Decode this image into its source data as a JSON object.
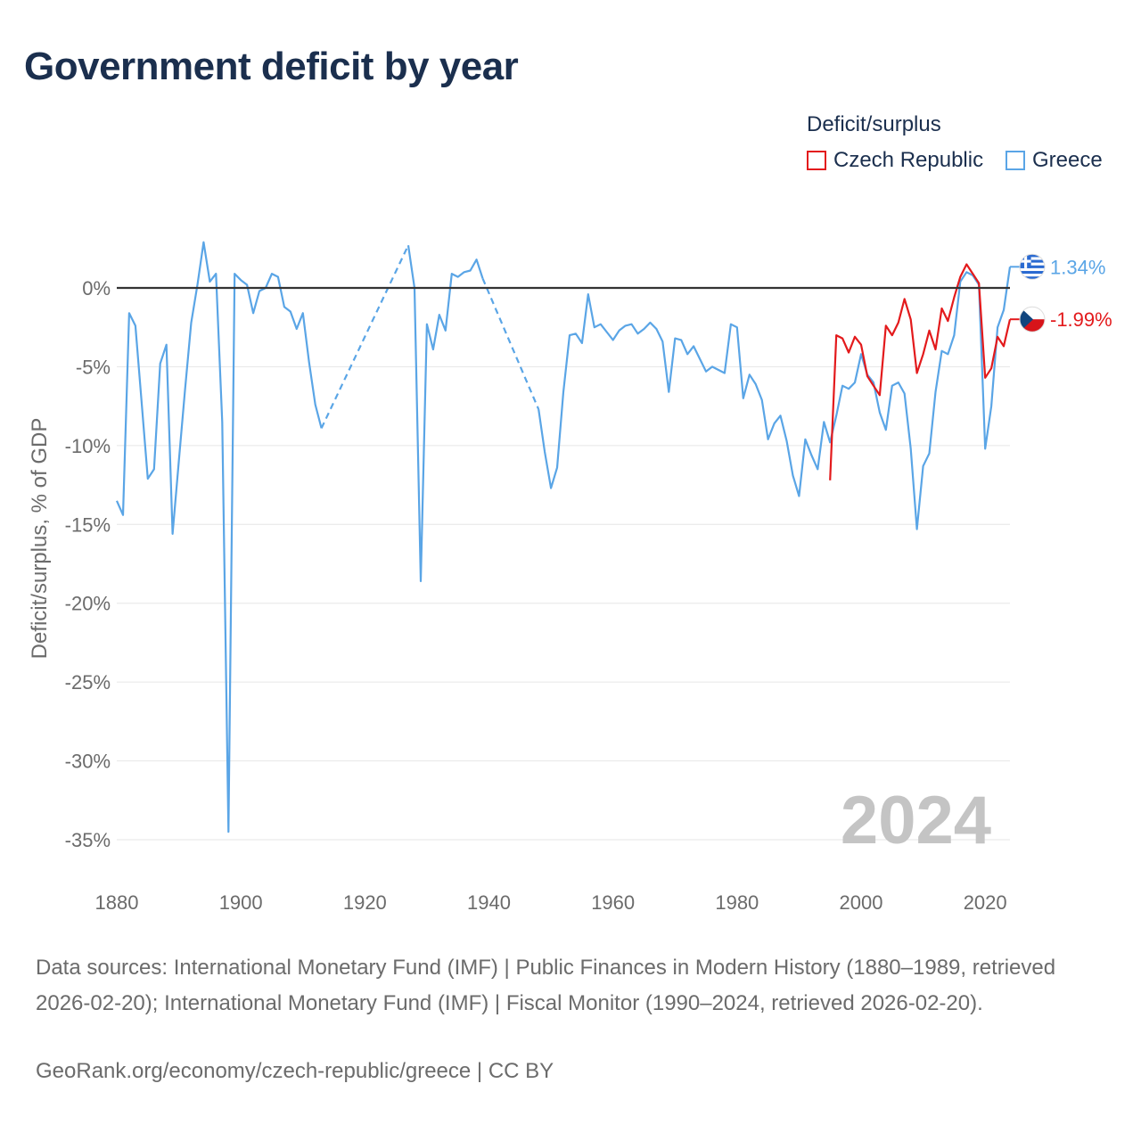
{
  "title": "Government deficit by year",
  "legend": {
    "title": "Deficit/surplus",
    "items": [
      {
        "name": "Czech Republic",
        "color": "#e31a1c"
      },
      {
        "name": "Greece",
        "color": "#5aa5e6"
      }
    ]
  },
  "watermark_year": "2024",
  "sources": "Data sources: International Monetary Fund (IMF) | Public Finances in Modern History (1880–1989, retrieved 2026-02-20); International Monetary Fund (IMF) | Fiscal Monitor (1990–2024, retrieved 2026-02-20).",
  "credit": "GeoRank.org/economy/czech-republic/greece | CC BY",
  "chart_data": {
    "type": "line",
    "title": "Government deficit by year",
    "xlabel": "",
    "ylabel": "Deficit/surplus, % of GDP",
    "xlim": [
      1880,
      2024
    ],
    "ylim": [
      -37,
      3
    ],
    "xticks": [
      1880,
      1900,
      1920,
      1940,
      1960,
      1980,
      2000,
      2020
    ],
    "yticks": [
      0,
      -5,
      -10,
      -15,
      -20,
      -25,
      -30,
      -35
    ],
    "ytick_labels": [
      "0%",
      "-5%",
      "-10%",
      "-15%",
      "-20%",
      "-25%",
      "-30%",
      "-35%"
    ],
    "end_labels": {
      "Greece": "1.34%",
      "Czech Republic": "-1.99%"
    },
    "series": [
      {
        "name": "Greece",
        "color": "#5aa5e6",
        "segments": [
          {
            "style": "solid",
            "points": [
              [
                1880,
                -13.5
              ],
              [
                1881,
                -14.4
              ],
              [
                1882,
                -1.6
              ],
              [
                1883,
                -2.4
              ],
              [
                1884,
                -7.2
              ],
              [
                1885,
                -12.1
              ],
              [
                1886,
                -11.5
              ],
              [
                1887,
                -4.8
              ],
              [
                1888,
                -3.6
              ],
              [
                1889,
                -15.6
              ],
              [
                1890,
                -11.0
              ],
              [
                1891,
                -6.5
              ],
              [
                1892,
                -2.2
              ],
              [
                1893,
                0.2
              ],
              [
                1894,
                2.9
              ],
              [
                1895,
                0.4
              ],
              [
                1896,
                0.9
              ],
              [
                1897,
                -8.5
              ],
              [
                1898,
                -34.5
              ],
              [
                1899,
                0.9
              ],
              [
                1900,
                0.5
              ],
              [
                1901,
                0.2
              ],
              [
                1902,
                -1.6
              ],
              [
                1903,
                -0.2
              ],
              [
                1904,
                0.0
              ],
              [
                1905,
                0.9
              ],
              [
                1906,
                0.7
              ],
              [
                1907,
                -1.2
              ],
              [
                1908,
                -1.5
              ],
              [
                1909,
                -2.6
              ],
              [
                1910,
                -1.6
              ],
              [
                1911,
                -4.7
              ],
              [
                1912,
                -7.4
              ],
              [
                1913,
                -8.9
              ]
            ]
          },
          {
            "style": "dashed",
            "points": [
              [
                1913,
                -8.9
              ],
              [
                1927,
                2.7
              ]
            ]
          },
          {
            "style": "solid",
            "points": [
              [
                1927,
                2.7
              ],
              [
                1928,
                0.0
              ],
              [
                1929,
                -18.6
              ],
              [
                1930,
                -2.3
              ],
              [
                1931,
                -3.9
              ],
              [
                1932,
                -1.7
              ],
              [
                1933,
                -2.7
              ],
              [
                1934,
                0.9
              ],
              [
                1935,
                0.7
              ],
              [
                1936,
                1.0
              ],
              [
                1937,
                1.1
              ],
              [
                1938,
                1.8
              ],
              [
                1939,
                0.6
              ]
            ]
          },
          {
            "style": "dashed",
            "points": [
              [
                1939,
                0.6
              ],
              [
                1948,
                -7.7
              ]
            ]
          },
          {
            "style": "solid",
            "points": [
              [
                1948,
                -7.7
              ],
              [
                1949,
                -10.4
              ],
              [
                1950,
                -12.7
              ],
              [
                1951,
                -11.4
              ],
              [
                1952,
                -6.6
              ],
              [
                1953,
                -3.0
              ],
              [
                1954,
                -2.9
              ],
              [
                1955,
                -3.5
              ],
              [
                1956,
                -0.4
              ],
              [
                1957,
                -2.5
              ],
              [
                1958,
                -2.3
              ],
              [
                1959,
                -2.8
              ],
              [
                1960,
                -3.3
              ],
              [
                1961,
                -2.7
              ],
              [
                1962,
                -2.4
              ],
              [
                1963,
                -2.3
              ],
              [
                1964,
                -2.9
              ],
              [
                1965,
                -2.6
              ],
              [
                1966,
                -2.2
              ],
              [
                1967,
                -2.6
              ],
              [
                1968,
                -3.4
              ],
              [
                1969,
                -6.6
              ],
              [
                1970,
                -3.2
              ],
              [
                1971,
                -3.3
              ],
              [
                1972,
                -4.2
              ],
              [
                1973,
                -3.7
              ],
              [
                1974,
                -4.5
              ],
              [
                1975,
                -5.3
              ],
              [
                1976,
                -5.0
              ],
              [
                1977,
                -5.2
              ],
              [
                1978,
                -5.4
              ],
              [
                1979,
                -2.3
              ],
              [
                1980,
                -2.5
              ],
              [
                1981,
                -7.0
              ],
              [
                1982,
                -5.5
              ],
              [
                1983,
                -6.1
              ],
              [
                1984,
                -7.1
              ],
              [
                1985,
                -9.6
              ],
              [
                1986,
                -8.6
              ],
              [
                1987,
                -8.1
              ],
              [
                1988,
                -9.7
              ],
              [
                1989,
                -11.9
              ],
              [
                1990,
                -13.2
              ],
              [
                1991,
                -9.6
              ],
              [
                1992,
                -10.6
              ],
              [
                1993,
                -11.5
              ],
              [
                1994,
                -8.5
              ],
              [
                1995,
                -9.8
              ],
              [
                1996,
                -8.1
              ],
              [
                1997,
                -6.2
              ],
              [
                1998,
                -6.4
              ],
              [
                1999,
                -6.0
              ],
              [
                2000,
                -4.2
              ],
              [
                2001,
                -5.5
              ],
              [
                2002,
                -6.0
              ],
              [
                2003,
                -7.9
              ],
              [
                2004,
                -9.0
              ],
              [
                2005,
                -6.2
              ],
              [
                2006,
                -6.0
              ],
              [
                2007,
                -6.7
              ],
              [
                2008,
                -10.2
              ],
              [
                2009,
                -15.3
              ],
              [
                2010,
                -11.3
              ],
              [
                2011,
                -10.5
              ],
              [
                2012,
                -6.6
              ],
              [
                2013,
                -4.0
              ],
              [
                2014,
                -4.2
              ],
              [
                2015,
                -3.0
              ],
              [
                2016,
                0.4
              ],
              [
                2017,
                1.0
              ],
              [
                2018,
                0.8
              ],
              [
                2019,
                0.2
              ],
              [
                2020,
                -10.2
              ],
              [
                2021,
                -7.5
              ],
              [
                2022,
                -2.5
              ],
              [
                2023,
                -1.4
              ],
              [
                2024,
                1.34
              ]
            ]
          }
        ]
      },
      {
        "name": "Czech Republic",
        "color": "#e31a1c",
        "segments": [
          {
            "style": "solid",
            "points": [
              [
                1995,
                -12.2
              ],
              [
                1996,
                -3.0
              ],
              [
                1997,
                -3.2
              ],
              [
                1998,
                -4.1
              ],
              [
                1999,
                -3.1
              ],
              [
                2000,
                -3.6
              ],
              [
                2001,
                -5.6
              ],
              [
                2002,
                -6.2
              ],
              [
                2003,
                -6.8
              ],
              [
                2004,
                -2.4
              ],
              [
                2005,
                -3.0
              ],
              [
                2006,
                -2.2
              ],
              [
                2007,
                -0.7
              ],
              [
                2008,
                -2.0
              ],
              [
                2009,
                -5.4
              ],
              [
                2010,
                -4.2
              ],
              [
                2011,
                -2.7
              ],
              [
                2012,
                -3.9
              ],
              [
                2013,
                -1.3
              ],
              [
                2014,
                -2.1
              ],
              [
                2015,
                -0.6
              ],
              [
                2016,
                0.7
              ],
              [
                2017,
                1.5
              ],
              [
                2018,
                0.9
              ],
              [
                2019,
                0.3
              ],
              [
                2020,
                -5.7
              ],
              [
                2021,
                -5.1
              ],
              [
                2022,
                -3.1
              ],
              [
                2023,
                -3.7
              ],
              [
                2024,
                -1.99
              ]
            ]
          }
        ]
      }
    ]
  }
}
